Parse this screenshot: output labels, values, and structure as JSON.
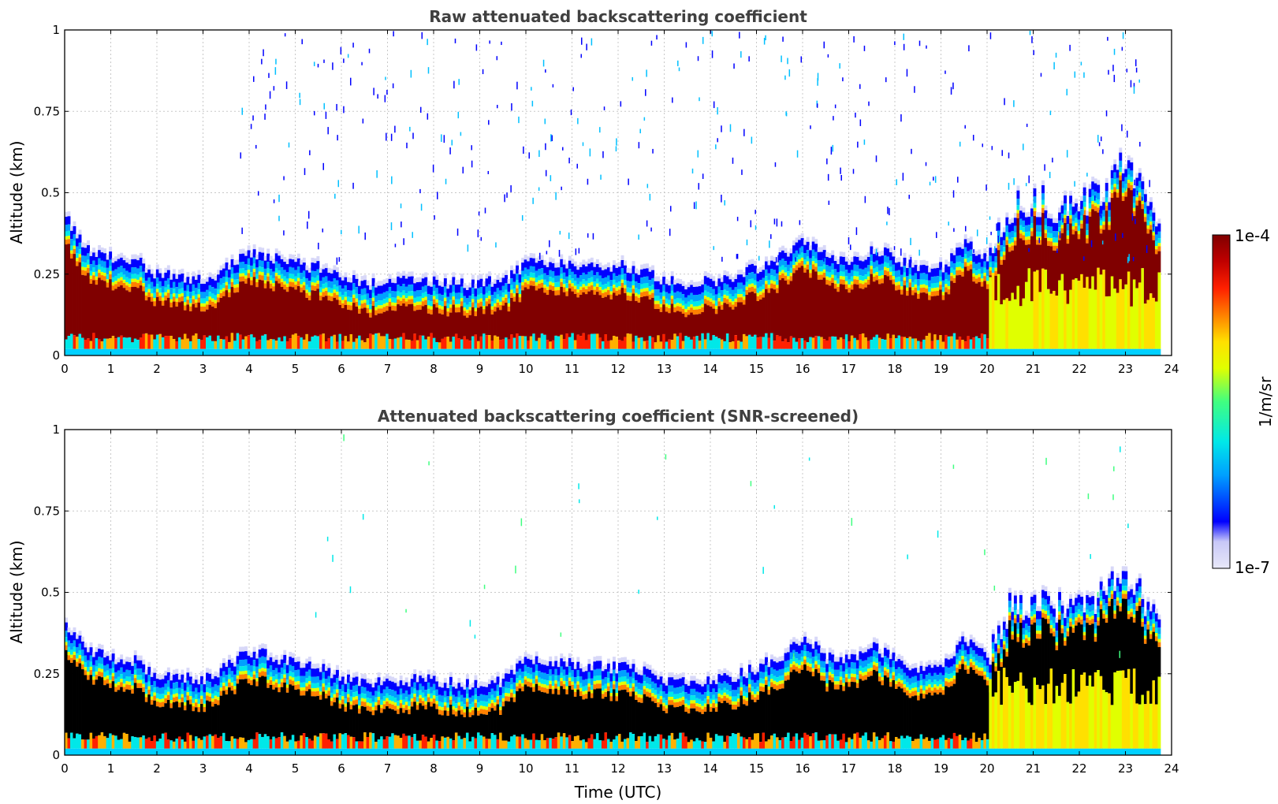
{
  "chart_data": [
    {
      "type": "heatmap",
      "title": "Raw attenuated backscattering coefficient",
      "xlabel": "",
      "ylabel": "Altitude (km)",
      "xlim": [
        0,
        24
      ],
      "ylim": [
        0,
        1
      ],
      "xticks": [
        "0",
        "1",
        "2",
        "3",
        "4",
        "5",
        "6",
        "7",
        "8",
        "9",
        "10",
        "11",
        "12",
        "13",
        "14",
        "15",
        "16",
        "17",
        "18",
        "19",
        "20",
        "21",
        "22",
        "23",
        "24"
      ],
      "yticks": [
        "0",
        "0.25",
        "0.5",
        "0.75",
        "1"
      ],
      "grid": true,
      "screening": "raw",
      "layer_top_km": {
        "time_utc": [
          0,
          0.5,
          1,
          1.5,
          2,
          2.5,
          3,
          3.5,
          4,
          4.5,
          5,
          5.5,
          6,
          6.5,
          7,
          7.5,
          8,
          8.5,
          9,
          9.5,
          10,
          10.5,
          11,
          11.5,
          12,
          12.5,
          13,
          13.5,
          14,
          14.5,
          15,
          15.5,
          16,
          16.5,
          17,
          17.5,
          18,
          18.5,
          19,
          19.5,
          20,
          20.5,
          21,
          21.5,
          22,
          22.5,
          23,
          23.5,
          23.7
        ],
        "top": [
          0.42,
          0.32,
          0.3,
          0.29,
          0.25,
          0.24,
          0.23,
          0.27,
          0.31,
          0.3,
          0.28,
          0.27,
          0.24,
          0.22,
          0.22,
          0.23,
          0.23,
          0.22,
          0.22,
          0.23,
          0.28,
          0.29,
          0.28,
          0.27,
          0.28,
          0.26,
          0.23,
          0.22,
          0.23,
          0.24,
          0.27,
          0.3,
          0.36,
          0.3,
          0.28,
          0.33,
          0.3,
          0.26,
          0.27,
          0.35,
          0.3,
          0.45,
          0.46,
          0.45,
          0.48,
          0.5,
          0.58,
          0.48,
          0.42
        ]
      }
    },
    {
      "type": "heatmap",
      "title": "Attenuated backscattering coefficient (SNR-screened)",
      "xlabel": "Time (UTC)",
      "ylabel": "Altitude (km)",
      "xlim": [
        0,
        24
      ],
      "ylim": [
        0,
        1
      ],
      "xticks": [
        "0",
        "1",
        "2",
        "3",
        "4",
        "5",
        "6",
        "7",
        "8",
        "9",
        "10",
        "11",
        "12",
        "13",
        "14",
        "15",
        "16",
        "17",
        "18",
        "19",
        "20",
        "21",
        "22",
        "23",
        "24"
      ],
      "yticks": [
        "0",
        "0.25",
        "0.5",
        "0.75",
        "1"
      ],
      "grid": true,
      "screening": "snr",
      "layer_top_km": {
        "time_utc": [
          0,
          0.5,
          1,
          1.5,
          2,
          2.5,
          3,
          3.5,
          4,
          4.5,
          5,
          5.5,
          6,
          6.5,
          7,
          7.5,
          8,
          8.5,
          9,
          9.5,
          10,
          10.5,
          11,
          11.5,
          12,
          12.5,
          13,
          13.5,
          14,
          14.5,
          15,
          15.5,
          16,
          16.5,
          17,
          17.5,
          18,
          18.5,
          19,
          19.5,
          20,
          20.5,
          21,
          21.5,
          22,
          22.5,
          23,
          23.5,
          23.7
        ],
        "top": [
          0.4,
          0.32,
          0.3,
          0.29,
          0.24,
          0.24,
          0.23,
          0.27,
          0.32,
          0.3,
          0.28,
          0.27,
          0.24,
          0.22,
          0.22,
          0.23,
          0.23,
          0.22,
          0.22,
          0.23,
          0.3,
          0.29,
          0.28,
          0.27,
          0.27,
          0.26,
          0.23,
          0.22,
          0.23,
          0.24,
          0.27,
          0.3,
          0.37,
          0.3,
          0.3,
          0.33,
          0.3,
          0.26,
          0.27,
          0.36,
          0.31,
          0.45,
          0.46,
          0.45,
          0.48,
          0.5,
          0.56,
          0.46,
          0.4
        ]
      }
    }
  ],
  "colorbar": {
    "max_label": "1e-4",
    "min_label": "1e-7",
    "unit_label": "1/m/sr",
    "colormap": [
      "#e8e8f8",
      "#c8c8f8",
      "#0000ff",
      "#00a0ff",
      "#00e8e8",
      "#40ff80",
      "#e0ff00",
      "#ffe000",
      "#ff8000",
      "#ff2000",
      "#c00000",
      "#800000"
    ]
  }
}
